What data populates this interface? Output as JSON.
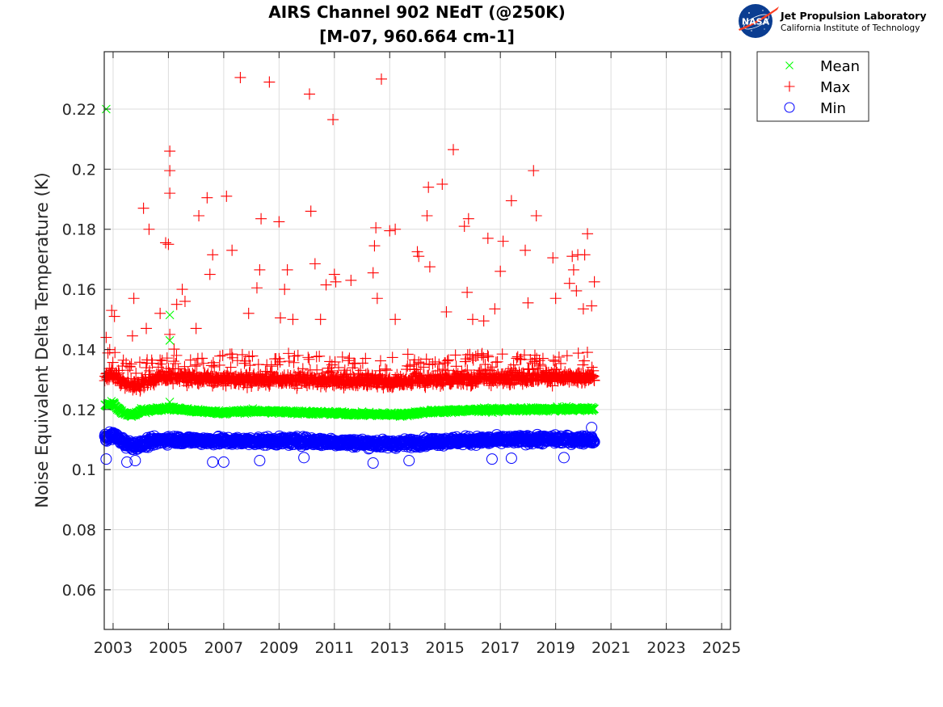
{
  "chart_data": {
    "type": "scatter",
    "title": [
      "AIRS Channel 902 NEdT (@250K)",
      "[M-07, 960.664 cm-1]"
    ],
    "xlabel": "",
    "ylabel": "Noise Equivalent Delta Temperature (K)",
    "xlim": [
      2002.68,
      2025.32
    ],
    "ylim": [
      0.0468,
      0.2391
    ],
    "xticks": [
      2003,
      2005,
      2007,
      2009,
      2011,
      2013,
      2015,
      2017,
      2019,
      2021,
      2023,
      2025
    ],
    "xtick_labels": [
      "2003",
      "2005",
      "2007",
      "2009",
      "2011",
      "2013",
      "2015",
      "2017",
      "2019",
      "2021",
      "2023",
      "2025"
    ],
    "yticks": [
      0.06,
      0.08,
      0.1,
      0.12,
      0.14,
      0.16,
      0.18,
      0.2,
      0.22
    ],
    "ytick_labels": [
      "0.06",
      "0.08",
      "0.1",
      "0.12",
      "0.14",
      "0.16",
      "0.18",
      "0.2",
      "0.22"
    ],
    "grid": true,
    "legend_position": "outside-top-right",
    "x_data_range": [
      2002.7,
      2020.4
    ],
    "series": [
      {
        "name": "Mean",
        "marker": "x",
        "color": "#00ff00",
        "typical_value": 0.119,
        "band": [
          0.117,
          0.123
        ],
        "notable_points": [
          {
            "x": 2002.75,
            "y": 0.22
          },
          {
            "x": 2005.05,
            "y": 0.1515
          },
          {
            "x": 2005.05,
            "y": 0.143
          },
          {
            "x": 2005.05,
            "y": 0.1225
          }
        ],
        "trend": [
          {
            "x": 2002.7,
            "y": 0.1215
          },
          {
            "x": 2003.0,
            "y": 0.122
          },
          {
            "x": 2003.3,
            "y": 0.119
          },
          {
            "x": 2003.7,
            "y": 0.118
          },
          {
            "x": 2004.0,
            "y": 0.1195
          },
          {
            "x": 2005.0,
            "y": 0.1205
          },
          {
            "x": 2006.0,
            "y": 0.1195
          },
          {
            "x": 2007.0,
            "y": 0.119
          },
          {
            "x": 2008.0,
            "y": 0.1195
          },
          {
            "x": 2010.0,
            "y": 0.119
          },
          {
            "x": 2012.0,
            "y": 0.1185
          },
          {
            "x": 2013.5,
            "y": 0.1183
          },
          {
            "x": 2014.3,
            "y": 0.1192
          },
          {
            "x": 2016.0,
            "y": 0.1198
          },
          {
            "x": 2018.0,
            "y": 0.12
          },
          {
            "x": 2020.4,
            "y": 0.1202
          }
        ]
      },
      {
        "name": "Max",
        "marker": "+",
        "color": "#ff0000",
        "typical_value": 0.13,
        "band": [
          0.126,
          0.137
        ],
        "trend": [
          {
            "x": 2002.7,
            "y": 0.131
          },
          {
            "x": 2003.0,
            "y": 0.132
          },
          {
            "x": 2003.4,
            "y": 0.1285
          },
          {
            "x": 2003.8,
            "y": 0.128
          },
          {
            "x": 2004.5,
            "y": 0.13
          },
          {
            "x": 2005.0,
            "y": 0.131
          },
          {
            "x": 2007.0,
            "y": 0.13
          },
          {
            "x": 2010.0,
            "y": 0.1298
          },
          {
            "x": 2013.0,
            "y": 0.1292
          },
          {
            "x": 2015.0,
            "y": 0.13
          },
          {
            "x": 2018.0,
            "y": 0.1305
          },
          {
            "x": 2020.4,
            "y": 0.1305
          }
        ],
        "outliers": [
          {
            "x": 2002.75,
            "y": 0.144
          },
          {
            "x": 2002.95,
            "y": 0.153
          },
          {
            "x": 2003.05,
            "y": 0.151
          },
          {
            "x": 2003.7,
            "y": 0.1445
          },
          {
            "x": 2003.75,
            "y": 0.157
          },
          {
            "x": 2004.1,
            "y": 0.187
          },
          {
            "x": 2004.2,
            "y": 0.147
          },
          {
            "x": 2004.3,
            "y": 0.18
          },
          {
            "x": 2004.7,
            "y": 0.152
          },
          {
            "x": 2004.9,
            "y": 0.1755
          },
          {
            "x": 2005.0,
            "y": 0.175
          },
          {
            "x": 2005.05,
            "y": 0.206
          },
          {
            "x": 2005.05,
            "y": 0.1995
          },
          {
            "x": 2005.05,
            "y": 0.192
          },
          {
            "x": 2005.05,
            "y": 0.145
          },
          {
            "x": 2005.3,
            "y": 0.155
          },
          {
            "x": 2005.5,
            "y": 0.16
          },
          {
            "x": 2005.6,
            "y": 0.156
          },
          {
            "x": 2006.0,
            "y": 0.147
          },
          {
            "x": 2006.1,
            "y": 0.1845
          },
          {
            "x": 2006.4,
            "y": 0.1905
          },
          {
            "x": 2006.5,
            "y": 0.165
          },
          {
            "x": 2006.6,
            "y": 0.1715
          },
          {
            "x": 2007.1,
            "y": 0.191
          },
          {
            "x": 2007.3,
            "y": 0.173
          },
          {
            "x": 2007.6,
            "y": 0.2305
          },
          {
            "x": 2007.9,
            "y": 0.152
          },
          {
            "x": 2008.2,
            "y": 0.1605
          },
          {
            "x": 2008.3,
            "y": 0.1665
          },
          {
            "x": 2008.35,
            "y": 0.1835
          },
          {
            "x": 2008.65,
            "y": 0.229
          },
          {
            "x": 2009.0,
            "y": 0.1825
          },
          {
            "x": 2009.05,
            "y": 0.1505
          },
          {
            "x": 2009.2,
            "y": 0.16
          },
          {
            "x": 2009.3,
            "y": 0.1665
          },
          {
            "x": 2009.5,
            "y": 0.15
          },
          {
            "x": 2010.1,
            "y": 0.225
          },
          {
            "x": 2010.15,
            "y": 0.186
          },
          {
            "x": 2010.3,
            "y": 0.1685
          },
          {
            "x": 2010.5,
            "y": 0.15
          },
          {
            "x": 2010.7,
            "y": 0.1615
          },
          {
            "x": 2010.95,
            "y": 0.2165
          },
          {
            "x": 2011.0,
            "y": 0.165
          },
          {
            "x": 2011.05,
            "y": 0.1625
          },
          {
            "x": 2011.6,
            "y": 0.163
          },
          {
            "x": 2012.4,
            "y": 0.1655
          },
          {
            "x": 2012.45,
            "y": 0.1745
          },
          {
            "x": 2012.5,
            "y": 0.1805
          },
          {
            "x": 2012.55,
            "y": 0.157
          },
          {
            "x": 2012.7,
            "y": 0.23
          },
          {
            "x": 2013.0,
            "y": 0.1795
          },
          {
            "x": 2013.2,
            "y": 0.18
          },
          {
            "x": 2013.2,
            "y": 0.15
          },
          {
            "x": 2014.0,
            "y": 0.1725
          },
          {
            "x": 2014.05,
            "y": 0.171
          },
          {
            "x": 2014.35,
            "y": 0.1845
          },
          {
            "x": 2014.4,
            "y": 0.194
          },
          {
            "x": 2014.45,
            "y": 0.1675
          },
          {
            "x": 2014.9,
            "y": 0.195
          },
          {
            "x": 2015.05,
            "y": 0.1525
          },
          {
            "x": 2015.3,
            "y": 0.2065
          },
          {
            "x": 2015.7,
            "y": 0.181
          },
          {
            "x": 2015.85,
            "y": 0.1835
          },
          {
            "x": 2015.8,
            "y": 0.159
          },
          {
            "x": 2016.0,
            "y": 0.15
          },
          {
            "x": 2016.4,
            "y": 0.1495
          },
          {
            "x": 2016.55,
            "y": 0.177
          },
          {
            "x": 2016.8,
            "y": 0.1535
          },
          {
            "x": 2017.0,
            "y": 0.166
          },
          {
            "x": 2017.1,
            "y": 0.176
          },
          {
            "x": 2017.4,
            "y": 0.1895
          },
          {
            "x": 2017.9,
            "y": 0.173
          },
          {
            "x": 2018.0,
            "y": 0.1555
          },
          {
            "x": 2018.2,
            "y": 0.1995
          },
          {
            "x": 2018.3,
            "y": 0.1845
          },
          {
            "x": 2018.9,
            "y": 0.1705
          },
          {
            "x": 2019.0,
            "y": 0.157
          },
          {
            "x": 2019.5,
            "y": 0.162
          },
          {
            "x": 2019.6,
            "y": 0.171
          },
          {
            "x": 2019.65,
            "y": 0.1665
          },
          {
            "x": 2019.75,
            "y": 0.1595
          },
          {
            "x": 2019.8,
            "y": 0.1715
          },
          {
            "x": 2020.0,
            "y": 0.1535
          },
          {
            "x": 2020.05,
            "y": 0.1715
          },
          {
            "x": 2020.15,
            "y": 0.1785
          },
          {
            "x": 2020.4,
            "y": 0.1625
          },
          {
            "x": 2020.3,
            "y": 0.1545
          }
        ]
      },
      {
        "name": "Min",
        "marker": "o",
        "color": "#0000ff",
        "typical_value": 0.1095,
        "band": [
          0.105,
          0.114
        ],
        "trend": [
          {
            "x": 2002.7,
            "y": 0.1105
          },
          {
            "x": 2003.0,
            "y": 0.1115
          },
          {
            "x": 2003.5,
            "y": 0.1085
          },
          {
            "x": 2003.9,
            "y": 0.108
          },
          {
            "x": 2004.5,
            "y": 0.1095
          },
          {
            "x": 2005.0,
            "y": 0.11
          },
          {
            "x": 2007.0,
            "y": 0.1095
          },
          {
            "x": 2010.0,
            "y": 0.1095
          },
          {
            "x": 2013.0,
            "y": 0.1085
          },
          {
            "x": 2015.0,
            "y": 0.1095
          },
          {
            "x": 2018.0,
            "y": 0.11
          },
          {
            "x": 2020.4,
            "y": 0.11
          }
        ],
        "outliers": [
          {
            "x": 2002.75,
            "y": 0.1035
          },
          {
            "x": 2003.5,
            "y": 0.1025
          },
          {
            "x": 2003.8,
            "y": 0.103
          },
          {
            "x": 2006.6,
            "y": 0.1025
          },
          {
            "x": 2007.0,
            "y": 0.1025
          },
          {
            "x": 2008.3,
            "y": 0.103
          },
          {
            "x": 2009.9,
            "y": 0.104
          },
          {
            "x": 2012.4,
            "y": 0.1022
          },
          {
            "x": 2013.7,
            "y": 0.103
          },
          {
            "x": 2016.7,
            "y": 0.1035
          },
          {
            "x": 2017.4,
            "y": 0.1038
          },
          {
            "x": 2019.3,
            "y": 0.104
          },
          {
            "x": 2020.3,
            "y": 0.114
          }
        ]
      }
    ]
  },
  "legend": {
    "items": [
      {
        "label": "Mean",
        "marker": "x",
        "color": "#00ff00"
      },
      {
        "label": "Max",
        "marker": "+",
        "color": "#ff0000"
      },
      {
        "label": "Min",
        "marker": "o",
        "color": "#0000ff"
      }
    ]
  },
  "logo": {
    "nasa_text": "NASA",
    "title": "Jet Propulsion Laboratory",
    "subtitle": "California Institute of Technology",
    "nasa_blue": "#0b3d91",
    "nasa_red": "#fc3d21"
  }
}
